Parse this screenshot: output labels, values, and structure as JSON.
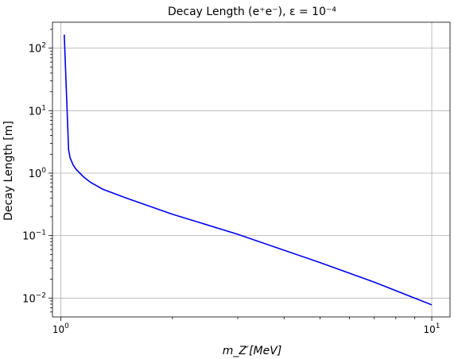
{
  "chart_data": {
    "type": "line",
    "title": "Decay Length (e⁺e⁻), ε = 10⁻⁴",
    "xlabel": "m_Z′[MeV]",
    "ylabel": "Decay Length [m]",
    "xscale": "log",
    "yscale": "log",
    "xlim": [
      0.95,
      11.2
    ],
    "ylim": [
      0.005,
      260
    ],
    "grid": true,
    "x_ticks": [
      {
        "value": 1,
        "base": "10",
        "exp": "0"
      },
      {
        "value": 10,
        "base": "10",
        "exp": "1"
      }
    ],
    "y_ticks": [
      {
        "value": 0.01,
        "base": "10",
        "exp": "−2"
      },
      {
        "value": 0.1,
        "base": "10",
        "exp": "−1"
      },
      {
        "value": 1,
        "base": "10",
        "exp": "0"
      },
      {
        "value": 10,
        "base": "10",
        "exp": "1"
      },
      {
        "value": 100,
        "base": "10",
        "exp": "2"
      }
    ],
    "series": [
      {
        "color": "#0000ee",
        "x": [
          1.022,
          1.05,
          1.06,
          1.08,
          1.1,
          1.15,
          1.2,
          1.3,
          1.5,
          2,
          3,
          5,
          7,
          10
        ],
        "y": [
          165,
          2.35,
          1.75,
          1.35,
          1.15,
          0.88,
          0.72,
          0.55,
          0.4,
          0.22,
          0.105,
          0.037,
          0.018,
          0.0078
        ]
      }
    ]
  }
}
